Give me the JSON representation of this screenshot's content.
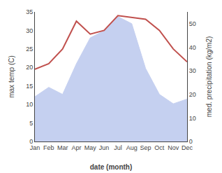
{
  "chart_data": {
    "type": "line",
    "xlabel": "date (month)",
    "ylabel": "max temp (C)",
    "y2label": "med. precipitation (kg/m2)",
    "categories": [
      "Jan",
      "Feb",
      "Mar",
      "Apr",
      "May",
      "Jun",
      "Jul",
      "Aug",
      "Sep",
      "Oct",
      "Nov",
      "Dec"
    ],
    "ylim": [
      0,
      35
    ],
    "yticks": [
      0,
      5,
      10,
      15,
      20,
      25,
      30,
      35
    ],
    "y2lim": [
      0,
      55
    ],
    "y2ticks": [
      0,
      10,
      20,
      30,
      40,
      50
    ],
    "grid": false,
    "series": [
      {
        "type": "area",
        "axis": "y2",
        "color": "#c5d0f0",
        "values": [
          19,
          23,
          20,
          33,
          44,
          47,
          53,
          50,
          31,
          20,
          16,
          18
        ]
      },
      {
        "type": "line",
        "color": "#c0504d",
        "values": [
          19.5,
          21.0,
          25.0,
          32.5,
          29.0,
          30.0,
          34.0,
          33.5,
          33.0,
          30.0,
          25.0,
          21.5
        ]
      }
    ]
  }
}
